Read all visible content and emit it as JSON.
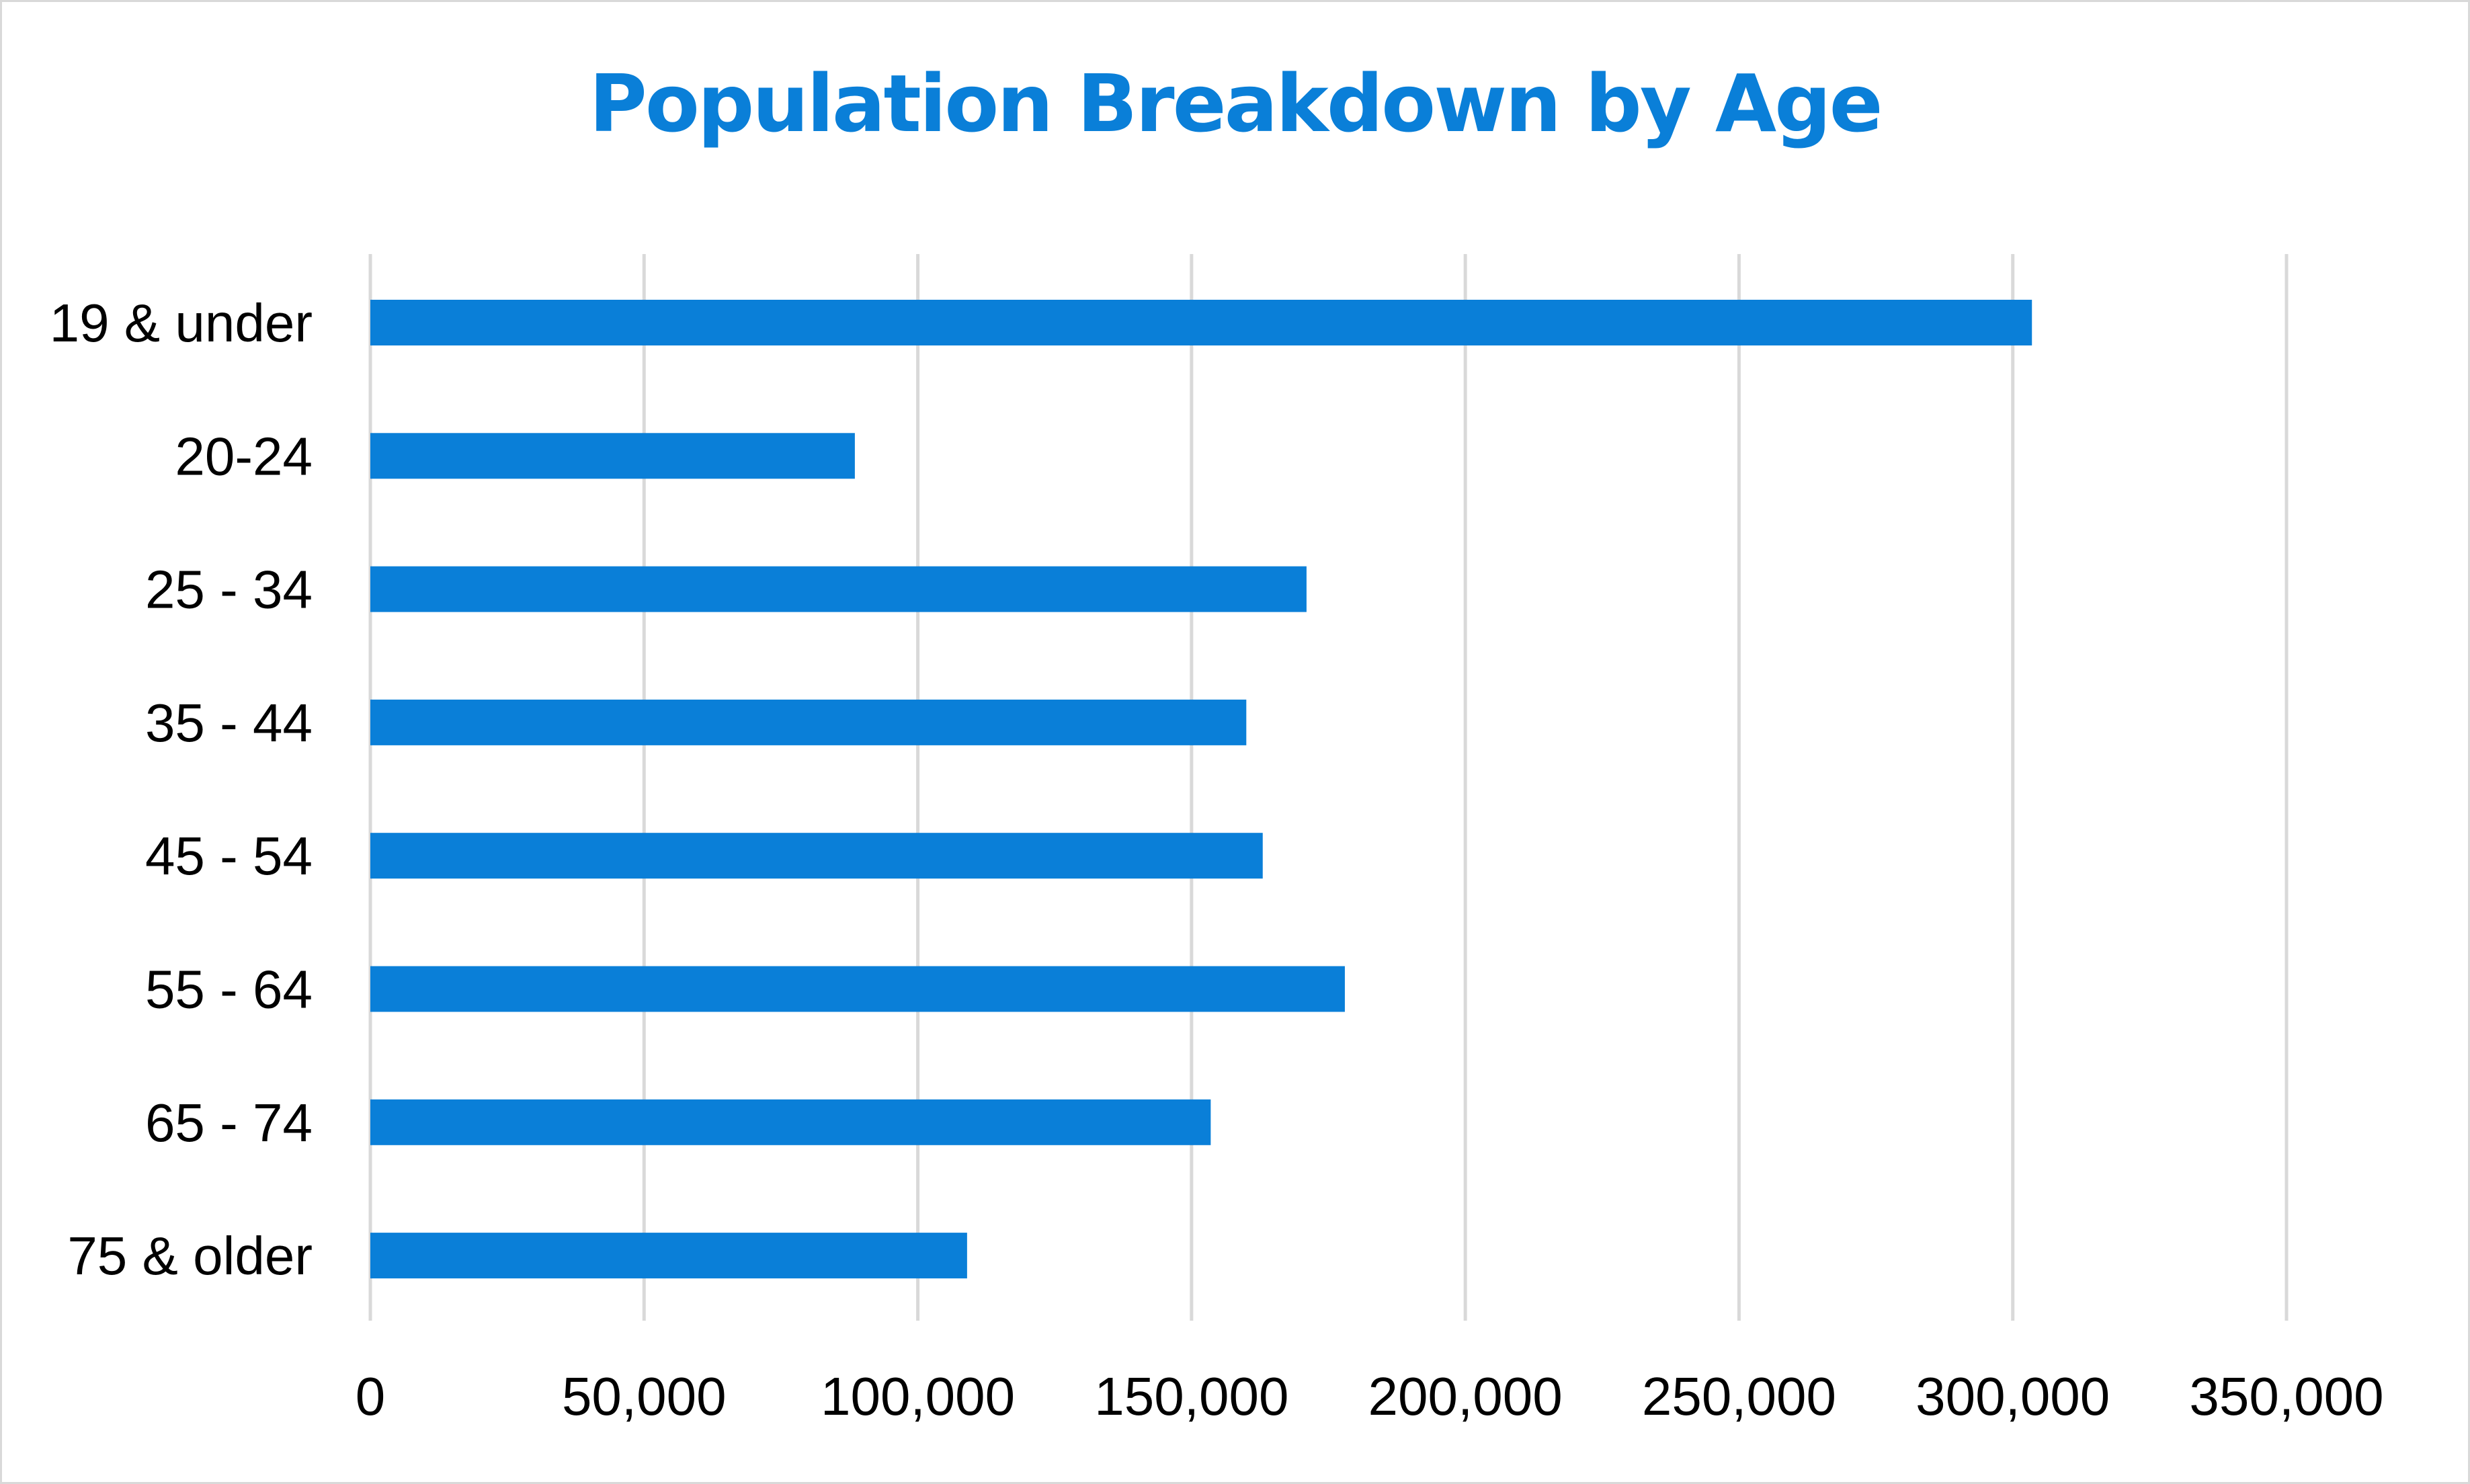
{
  "chart_data": {
    "type": "bar",
    "orientation": "horizontal",
    "title": "Population Breakdown by Age",
    "categories": [
      "19 & under",
      "20-24",
      "25 - 34",
      "35 - 44",
      "45 - 54",
      "55 - 64",
      "65 - 74",
      "75 & older"
    ],
    "values": [
      303500,
      88500,
      171000,
      160000,
      163000,
      178000,
      153500,
      109000
    ],
    "xlim": [
      0,
      350000
    ],
    "x_ticks": [
      0,
      50000,
      100000,
      150000,
      200000,
      250000,
      300000,
      350000
    ],
    "x_tick_labels": [
      "0",
      "50,000",
      "100,000",
      "150,000",
      "200,000",
      "250,000",
      "300,000",
      "350,000"
    ],
    "xlabel": "",
    "ylabel": "",
    "grid": "vertical",
    "legend": "none",
    "bar_color": "#0a7fd8",
    "title_color": "#0a7fd8",
    "grid_color": "#d9d9d9"
  }
}
